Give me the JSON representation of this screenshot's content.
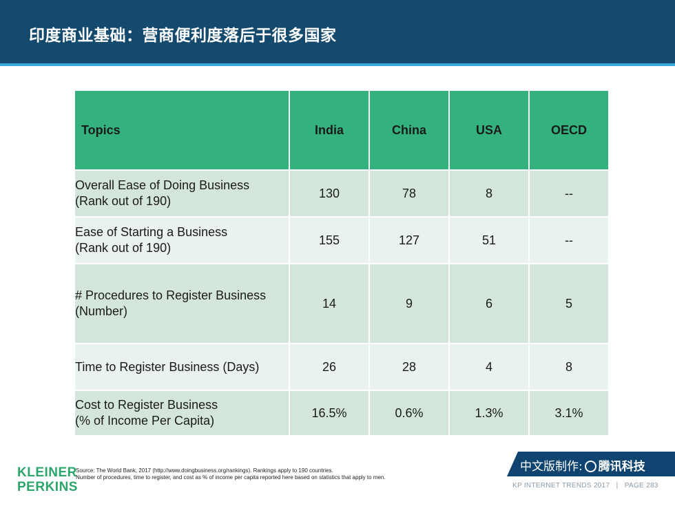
{
  "header": {
    "title": "印度商业基础：营商便利度落后于很多国家"
  },
  "table": {
    "headers": [
      "Topics",
      "India",
      "China",
      "USA",
      "OECD"
    ],
    "rows": [
      {
        "topic_line1": "Overall Ease of Doing Business",
        "topic_line2": "(Rank out of 190)",
        "values": [
          "130",
          "78",
          "8",
          "--"
        ]
      },
      {
        "topic_line1": "Ease of Starting a Business",
        "topic_line2": "(Rank out of 190)",
        "values": [
          "155",
          "127",
          "51",
          "--"
        ]
      },
      {
        "topic_line1": "# Procedures to Register Business",
        "topic_line2": "(Number)",
        "values": [
          "14",
          "9",
          "6",
          "5"
        ]
      },
      {
        "topic_line1": "Time to Register Business (Days)",
        "topic_line2": "",
        "values": [
          "26",
          "28",
          "4",
          "8"
        ]
      },
      {
        "topic_line1": "Cost to Register Business",
        "topic_line2": "(% of Income Per Capita)",
        "values": [
          "16.5%",
          "0.6%",
          "1.3%",
          "3.1%"
        ]
      }
    ]
  },
  "footer": {
    "source_line1": "Source: The World Bank, 2017 (http://www.doingbusiness.org/rankings). Rankings apply to 190 countries.",
    "source_line2": "Number of procedures, time to register, and cost as % of income per capita reported here based on statistics that apply to men.",
    "logo_line1": "KLEINER",
    "logo_line2": "PERKINS",
    "badge_prefix": "中文版制作:",
    "badge_brand": "腾讯科技",
    "page_info": "KP INTERNET TRENDS 2017   |   PAGE 283"
  },
  "colors": {
    "header_bg": "#144a6e",
    "header_stripe": "#3aa8d8",
    "table_header": "#34b27d",
    "row_dark": "#d4e6db",
    "row_light": "#eaf2ed",
    "logo": "#2aa66a"
  }
}
